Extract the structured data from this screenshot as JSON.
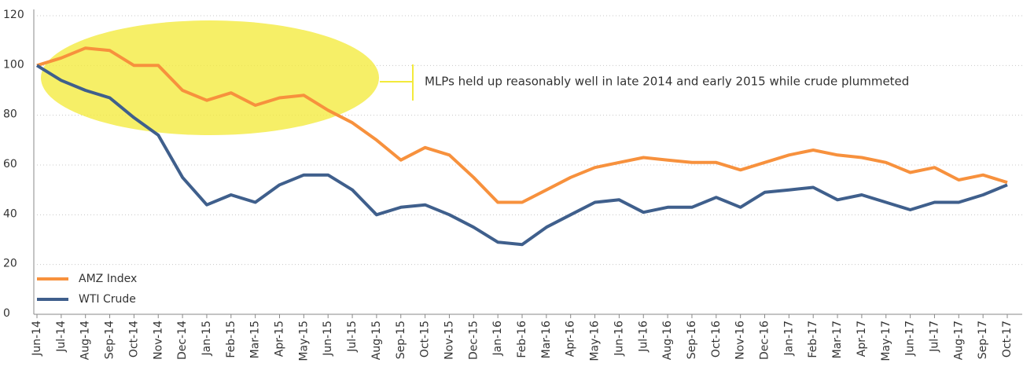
{
  "chart_data": {
    "type": "line",
    "categories": [
      "Jun-14",
      "Jul-14",
      "Aug-14",
      "Sep-14",
      "Oct-14",
      "Nov-14",
      "Dec-14",
      "Jan-15",
      "Feb-15",
      "Mar-15",
      "Apr-15",
      "May-15",
      "Jun-15",
      "Jul-15",
      "Aug-15",
      "Sep-15",
      "Oct-15",
      "Nov-15",
      "Dec-15",
      "Jan-16",
      "Feb-16",
      "Mar-16",
      "Apr-16",
      "May-16",
      "Jun-16",
      "Jul-16",
      "Aug-16",
      "Sep-16",
      "Oct-16",
      "Nov-16",
      "Dec-16",
      "Jan-17",
      "Feb-17",
      "Mar-17",
      "Apr-17",
      "May-17",
      "Jun-17",
      "Jul-17",
      "Aug-17",
      "Sep-17",
      "Oct-17"
    ],
    "series": [
      {
        "name": "AMZ Index",
        "color": "#f7913d",
        "values": [
          100,
          103,
          107,
          106,
          100,
          100,
          90,
          86,
          89,
          84,
          87,
          88,
          82,
          77,
          70,
          62,
          67,
          64,
          55,
          45,
          45,
          50,
          55,
          59,
          61,
          63,
          62,
          61,
          61,
          58,
          61,
          64,
          66,
          64,
          63,
          61,
          57,
          59,
          54,
          56,
          53
        ]
      },
      {
        "name": "WTI Crude",
        "color": "#3f5f8c",
        "values": [
          100,
          94,
          90,
          87,
          79,
          72,
          55,
          44,
          48,
          45,
          52,
          56,
          56,
          50,
          40,
          43,
          44,
          40,
          35,
          29,
          28,
          35,
          40,
          45,
          46,
          41,
          43,
          43,
          47,
          43,
          49,
          50,
          51,
          46,
          48,
          45,
          42,
          45,
          45,
          48,
          52
        ]
      }
    ],
    "ylim": [
      0,
      120
    ],
    "yticks": [
      0,
      20,
      40,
      60,
      80,
      100,
      120
    ],
    "grid": true,
    "legend": "lower left",
    "annotation": "MLPs held up reasonably well in late 2014 and early 2015 while crude plummeted"
  }
}
